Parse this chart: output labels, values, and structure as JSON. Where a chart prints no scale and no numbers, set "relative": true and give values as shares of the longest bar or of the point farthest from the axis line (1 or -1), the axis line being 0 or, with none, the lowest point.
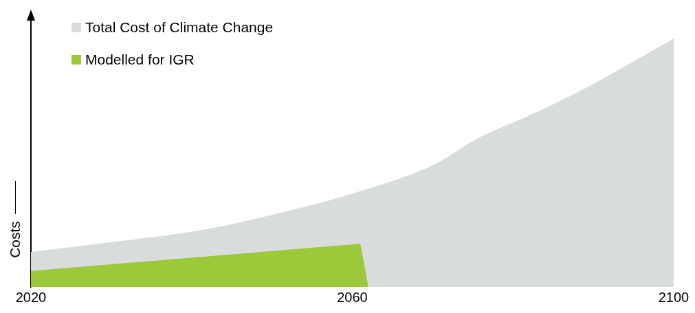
{
  "chart_data": {
    "type": "area",
    "ylabel": "Costs",
    "relative": true,
    "xlim": [
      2020,
      2100
    ],
    "xticks": [
      2020,
      2060,
      2100
    ],
    "tick_labels": "x",
    "grid": false,
    "legend": "top left",
    "series": [
      {
        "name": "Total Cost of Climate Change",
        "color": "#d9dcdd",
        "x": [
          2020,
          2030,
          2041.8,
          2050,
          2060,
          2070,
          2076,
          2082,
          2088.9,
          2094,
          2100
        ],
        "values": [
          0.141,
          0.18,
          0.232,
          0.29,
          0.376,
          0.49,
          0.605,
          0.69,
          0.798,
          0.89,
          1
        ]
      },
      {
        "name": "Modelled for IGR",
        "color": "#9bc93a",
        "x": [
          2020,
          2061,
          2062
        ],
        "values": [
          0.064,
          0.174,
          0
        ]
      }
    ]
  }
}
